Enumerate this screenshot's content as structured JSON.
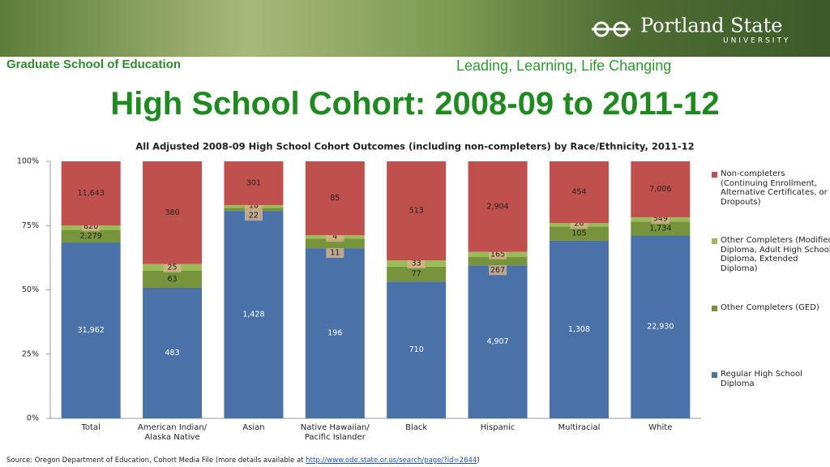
{
  "header": {
    "organization": "Portland State",
    "organization_sub": "UNIVERSITY",
    "school": "Graduate School of Education",
    "tagline": "Leading, Learning, Life Changing",
    "title": "High School Cohort: 2008-09 to 2011-12"
  },
  "chart_data": {
    "type": "bar",
    "stacking": "percent",
    "title": "All Adjusted 2008-09 High School Cohort Outcomes (including non-completers) by Race/Ethnicity, 2011-12",
    "categories": [
      "Total",
      "American Indian/ Alaska Native",
      "Asian",
      "Native Hawaiian/ Pacific Islander",
      "Black",
      "Hispanic",
      "Multiracial",
      "White"
    ],
    "series": [
      {
        "name": "Regular High School Diploma",
        "color": "#4a72a8",
        "values": [
          31962,
          483,
          1428,
          196,
          710,
          4907,
          1308,
          22930
        ],
        "value_labels": [
          "31,962",
          "483",
          "1,428",
          "196",
          "710",
          "4,907",
          "1,308",
          "22,930"
        ]
      },
      {
        "name": "Other Completers (GED)",
        "color": "#77933c",
        "values": [
          2279,
          63,
          22,
          11,
          77,
          267,
          105,
          1734
        ],
        "value_labels": [
          "2,279",
          "63",
          "22",
          "11",
          "77",
          "267",
          "105",
          "1,734"
        ]
      },
      {
        "name": "Other Completers (Modified Diploma, Adult High School Diploma, Extended Diploma)",
        "color": "#9bbb59",
        "values": [
          820,
          25,
          18,
          4,
          33,
          165,
          26,
          549
        ],
        "value_labels": [
          "820",
          "25",
          "18",
          "4",
          "33",
          "165",
          "26",
          "549"
        ]
      },
      {
        "name": "Non-completers (Continuing Enrollment, Alternative Certificates, or Dropouts)",
        "color": "#c0504d",
        "values": [
          11643,
          380,
          301,
          85,
          513,
          2904,
          454,
          7006
        ],
        "value_labels": [
          "11,643",
          "380",
          "301",
          "85",
          "513",
          "2,904",
          "454",
          "7,006"
        ]
      }
    ],
    "ylim": [
      0,
      100
    ],
    "yticks": [
      {
        "value": 0,
        "label": "0%"
      },
      {
        "value": 25,
        "label": "25%"
      },
      {
        "value": 50,
        "label": "50%"
      },
      {
        "value": 75,
        "label": "75%"
      },
      {
        "value": 100,
        "label": "100%"
      }
    ],
    "legend": "right"
  },
  "source": {
    "text": "Source: Oregon Department of Education, Cohort Media File (more details available at",
    "link": "http://www.ode.state.or.us/search/page/?id=2644",
    "close": ")"
  }
}
